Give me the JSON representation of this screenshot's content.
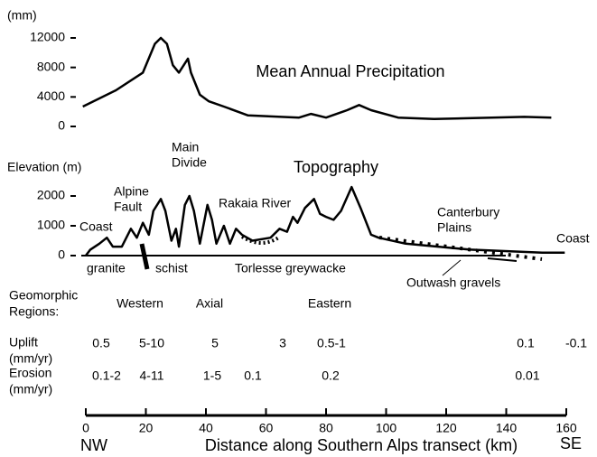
{
  "chart_data": [
    {
      "type": "line",
      "title": "Mean Annual Precipitation",
      "y_label": "(mm)",
      "x": [
        -1,
        10,
        19,
        23,
        25,
        27,
        29,
        31,
        34,
        35,
        38,
        41,
        46,
        54,
        71,
        75,
        80,
        87,
        91,
        95,
        104,
        116,
        146,
        155
      ],
      "series": [
        {
          "color": "#000000",
          "values": [
            2700,
            4900,
            7300,
            11200,
            12000,
            11200,
            8300,
            7300,
            9200,
            7300,
            4300,
            3400,
            2700,
            1500,
            1200,
            1700,
            1200,
            2200,
            2900,
            2200,
            1200,
            1000,
            1300,
            1200
          ]
        }
      ],
      "xlim": [
        0,
        160
      ],
      "ylim": [
        0,
        12000
      ],
      "yticks": [
        0,
        4000,
        8000,
        12000
      ]
    },
    {
      "type": "line",
      "title": "Topography",
      "y_label": "Elevation (m)",
      "x": [
        0,
        1.5,
        4.5,
        7,
        9,
        12,
        15,
        17,
        19,
        21,
        22.5,
        25,
        26.5,
        28.5,
        30,
        31,
        33,
        34.5,
        36,
        38,
        40.5,
        42,
        43.5,
        46,
        48,
        50,
        52,
        55.5,
        61.5,
        64.5,
        67,
        69,
        70.5,
        73,
        76,
        78,
        80,
        82.5,
        85,
        88.5,
        91.5,
        95,
        97.5,
        106.5,
        128,
        152,
        159.5
      ],
      "series": [
        {
          "color": "#000000",
          "values": [
            0,
            200,
            400,
            600,
            300,
            300,
            900,
            600,
            1100,
            700,
            1500,
            1900,
            1500,
            500,
            900,
            300,
            1700,
            2000,
            1500,
            400,
            1700,
            1200,
            400,
            1000,
            400,
            900,
            700,
            500,
            600,
            900,
            800,
            1300,
            1100,
            1600,
            1900,
            1400,
            1300,
            1200,
            1500,
            2300,
            1600,
            700,
            600,
            400,
            200,
            100,
            100
          ]
        }
      ],
      "xlim": [
        0,
        160
      ],
      "ylim": [
        0,
        2000
      ],
      "yticks": [
        0,
        1000,
        2000
      ],
      "annotations": [
        [
          "Coast"
        ],
        [
          "Alpine",
          "Fault"
        ],
        [
          "Main",
          "Divide"
        ],
        [
          "Rakaia River"
        ],
        [
          "Canterbury",
          "Plains"
        ],
        [
          "Coast"
        ],
        [
          "granite"
        ],
        [
          "schist"
        ],
        [
          "Torlesse greywacke"
        ],
        [
          "Outwash gravels"
        ]
      ]
    }
  ],
  "axis": {
    "label": "Distance along Southern Alps transect (km)",
    "left": "NW",
    "right": "SE",
    "xticks": [
      0,
      20,
      40,
      60,
      80,
      100,
      120,
      140,
      160
    ]
  },
  "table": {
    "regions_label": [
      "Geomorphic",
      "Regions:"
    ],
    "regions": [
      "Western",
      "Axial",
      "Eastern"
    ],
    "uplift_label": [
      "Uplift",
      "(mm/yr)"
    ],
    "uplift": [
      "0.5",
      "5-10",
      "5",
      "3",
      "0.5-1",
      "0.1",
      "-0.1"
    ],
    "erosion_label": [
      "Erosion",
      "(mm/yr)"
    ],
    "erosion": [
      "0.1-2",
      "4-11",
      "1-5",
      "0.1",
      "0.2",
      "0.01"
    ]
  }
}
